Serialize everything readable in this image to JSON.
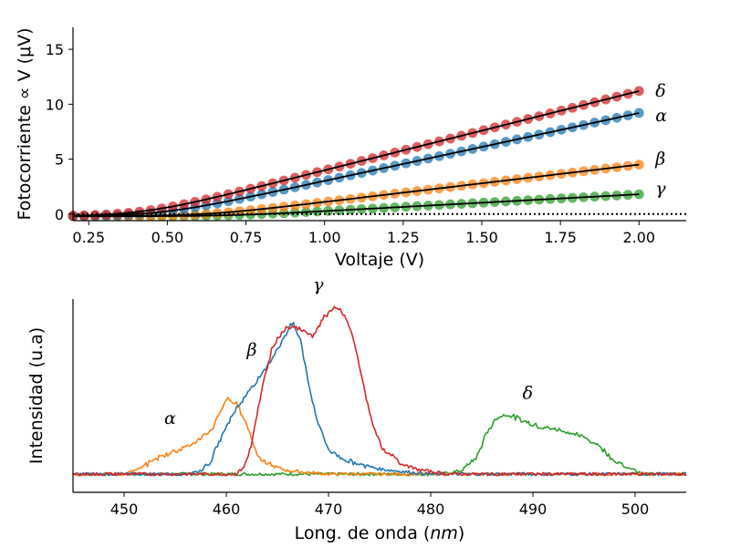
{
  "chart_data": [
    {
      "type": "scatter",
      "xlabel": "Voltaje (V)",
      "ylabel": "Fotocorriente ∝ V (μV)",
      "xlim": [
        0.2,
        2.15
      ],
      "ylim": [
        -0.6,
        17
      ],
      "xticks": [
        "0.25",
        "0.50",
        "0.75",
        "1.00",
        "1.25",
        "1.50",
        "1.75",
        "2.00"
      ],
      "xtick_values": [
        0.25,
        0.5,
        0.75,
        1.0,
        1.25,
        1.5,
        1.75,
        2.0
      ],
      "yticks": [
        "0",
        "5",
        "10",
        "15"
      ],
      "ytick_values": [
        0,
        5,
        10,
        15
      ],
      "x_range": [
        0.2,
        2.0
      ],
      "points_per_series": 52,
      "reference_line": {
        "y": 0,
        "style": "dotted"
      },
      "series": [
        {
          "name": "δ",
          "color": "#d62728",
          "onset": 0.42,
          "end_value": 11.4
        },
        {
          "name": "α",
          "color": "#1f77b4",
          "onset": 0.48,
          "end_value": 9.4
        },
        {
          "name": "β",
          "color": "#ff7f0e",
          "onset": 0.62,
          "end_value": 4.7
        },
        {
          "name": "γ",
          "color": "#2ca02c",
          "onset": 0.7,
          "end_value": 2.0
        }
      ]
    },
    {
      "type": "line",
      "xlabel": "Long. de onda (nm)",
      "xlabel_text": "Long. de onda (",
      "xlabel_unit": "nm",
      "xlabel_close": ")",
      "ylabel": "Intensidad (u.a)",
      "xlim": [
        445,
        505
      ],
      "xticks": [
        "450",
        "460",
        "470",
        "480",
        "490",
        "500"
      ],
      "xtick_values": [
        450,
        460,
        470,
        480,
        490,
        500
      ],
      "series": [
        {
          "name": "α",
          "color": "#ff7f0e",
          "peak_nm": 460,
          "peak_rel": 0.45
        },
        {
          "name": "β",
          "color": "#1f77b4",
          "peak_nm": 466.5,
          "peak_rel": 0.91
        },
        {
          "name": "γ",
          "color": "#d62728",
          "peak_nm": 471,
          "peak_rel": 1.0
        },
        {
          "name": "δ",
          "color": "#2ca02c",
          "peak_nm": 487,
          "peak_rel": 0.36
        }
      ]
    }
  ]
}
